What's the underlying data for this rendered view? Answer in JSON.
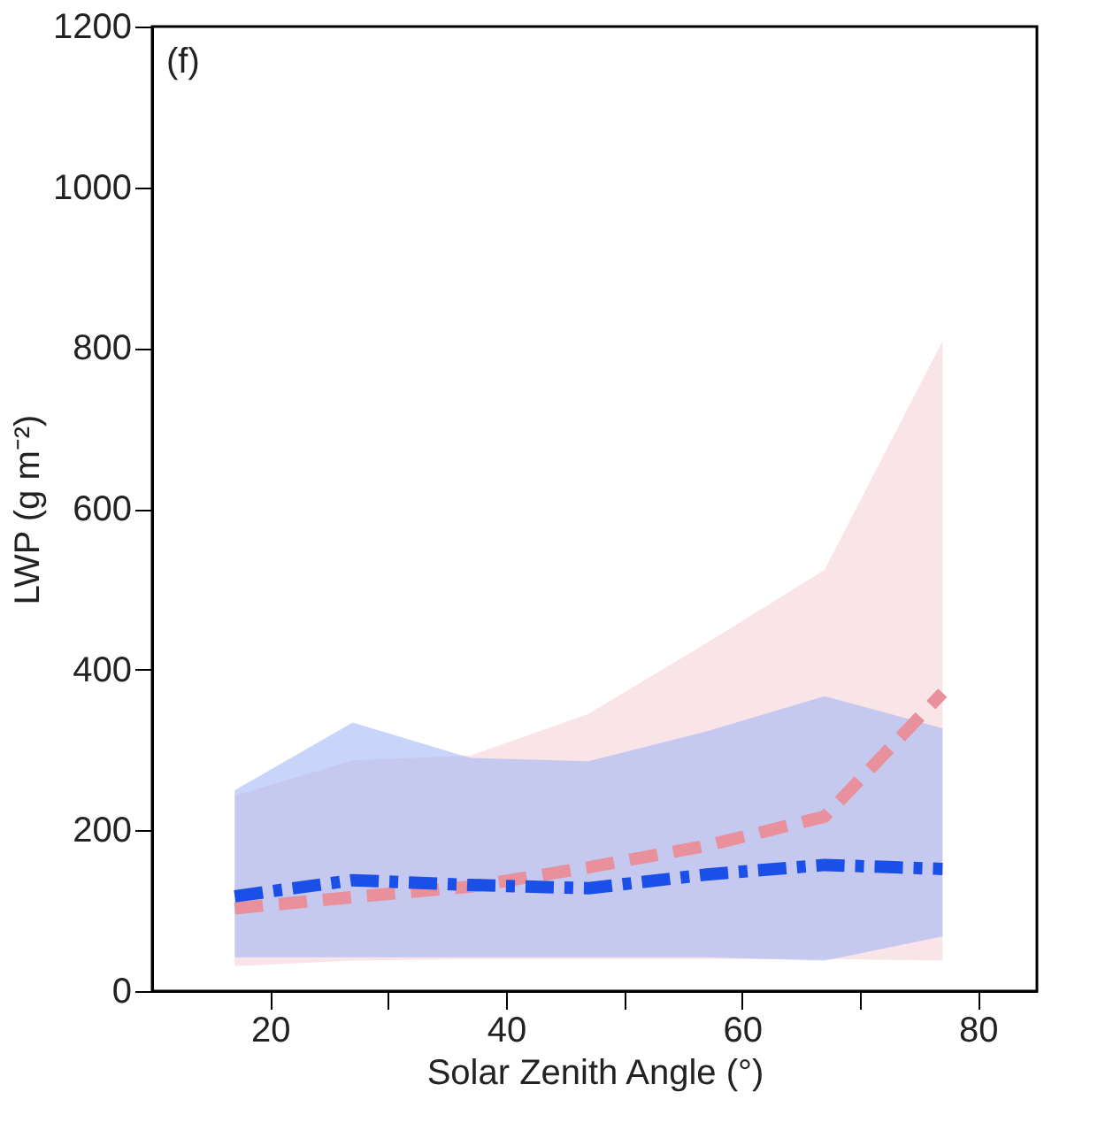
{
  "chart_data": {
    "type": "line",
    "xlabel": "Solar Zenith Angle (°)",
    "ylabel": "LWP (g m⁻²)",
    "annotations": [
      "(f)"
    ],
    "x": [
      17,
      27,
      37,
      47,
      57,
      67,
      77
    ],
    "series": [
      {
        "color": "#e8909c",
        "line_style": "dashed",
        "values": [
          103,
          117,
          130,
          154,
          181,
          217,
          371
        ],
        "lower": [
          31,
          38,
          40,
          40,
          40,
          40,
          38
        ],
        "upper": [
          243,
          287,
          293,
          345,
          433,
          524,
          809
        ]
      },
      {
        "color": "#1a4fe8",
        "line_style": "dashdot",
        "values": [
          118,
          138,
          132,
          128,
          145,
          157,
          152
        ],
        "lower": [
          42,
          42,
          42,
          42,
          42,
          38,
          68
        ],
        "upper": [
          250,
          334,
          290,
          286,
          323,
          367,
          327
        ]
      }
    ],
    "xlim": [
      10,
      85
    ],
    "xticks": [
      20,
      {
        "value": 30,
        "label": null
      },
      40,
      {
        "value": 50,
        "label": null
      },
      60,
      {
        "value": 70,
        "label": null
      },
      80
    ],
    "ylim": [
      0,
      1200
    ],
    "yticks": [
      0,
      200,
      400,
      600,
      800,
      1000,
      1200
    ],
    "grid": false,
    "marker": "none"
  }
}
